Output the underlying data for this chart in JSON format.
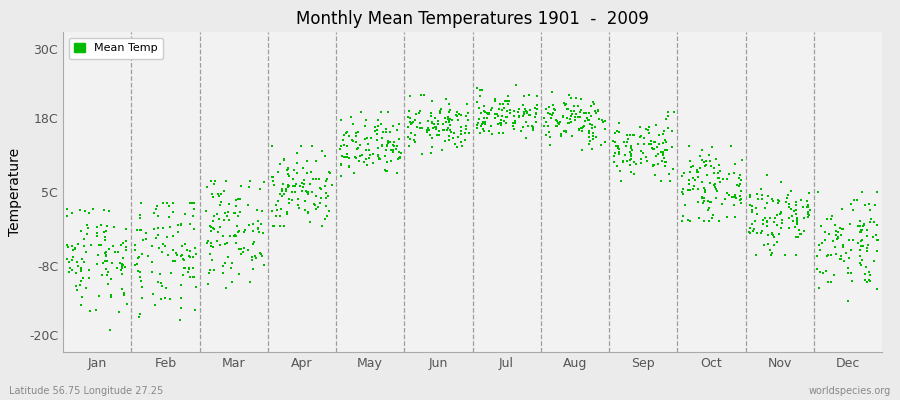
{
  "title": "Monthly Mean Temperatures 1901  -  2009",
  "ylabel": "Temperature",
  "yticks": [
    -20,
    -8,
    5,
    18,
    30
  ],
  "ytick_labels": [
    "-20C",
    "-8C",
    "5C",
    "18C",
    "30C"
  ],
  "ylim": [
    -23,
    33
  ],
  "xlim": [
    0,
    12
  ],
  "months": [
    "Jan",
    "Feb",
    "Mar",
    "Apr",
    "May",
    "Jun",
    "Jul",
    "Aug",
    "Sep",
    "Oct",
    "Nov",
    "Dec"
  ],
  "month_tick_positions": [
    0.5,
    1.5,
    2.5,
    3.5,
    4.5,
    5.5,
    6.5,
    7.5,
    8.5,
    9.5,
    10.5,
    11.5
  ],
  "dashed_lines": [
    1,
    2,
    3,
    4,
    5,
    6,
    7,
    8,
    9,
    10,
    11
  ],
  "dot_color": "#00bb00",
  "dot_size": 3,
  "background_color": "#ebebeb",
  "plot_bg_color": "#f2f2f2",
  "legend_label": "Mean Temp",
  "subtitle_left": "Latitude 56.75 Longitude 27.25",
  "subtitle_right": "worldspecies.org",
  "mean_temps_by_month": {
    "1": {
      "mean": -6.0,
      "std": 5.0,
      "min": -21,
      "max": 2
    },
    "2": {
      "mean": -6.5,
      "std": 5.5,
      "min": -20,
      "max": 3
    },
    "3": {
      "mean": -1.5,
      "std": 4.5,
      "min": -12,
      "max": 7
    },
    "4": {
      "mean": 5.5,
      "std": 3.5,
      "min": -1,
      "max": 13
    },
    "5": {
      "mean": 12.5,
      "std": 2.8,
      "min": 6,
      "max": 19
    },
    "6": {
      "mean": 16.5,
      "std": 2.2,
      "min": 11,
      "max": 22
    },
    "7": {
      "mean": 18.5,
      "std": 2.0,
      "min": 13,
      "max": 24
    },
    "8": {
      "mean": 17.5,
      "std": 2.2,
      "min": 12,
      "max": 23
    },
    "9": {
      "mean": 12.5,
      "std": 2.8,
      "min": 7,
      "max": 19
    },
    "10": {
      "mean": 6.0,
      "std": 3.0,
      "min": 0,
      "max": 13
    },
    "11": {
      "mean": 0.5,
      "std": 3.5,
      "min": -6,
      "max": 8
    },
    "12": {
      "mean": -3.5,
      "std": 4.5,
      "min": -14,
      "max": 5
    }
  },
  "n_years": 109
}
